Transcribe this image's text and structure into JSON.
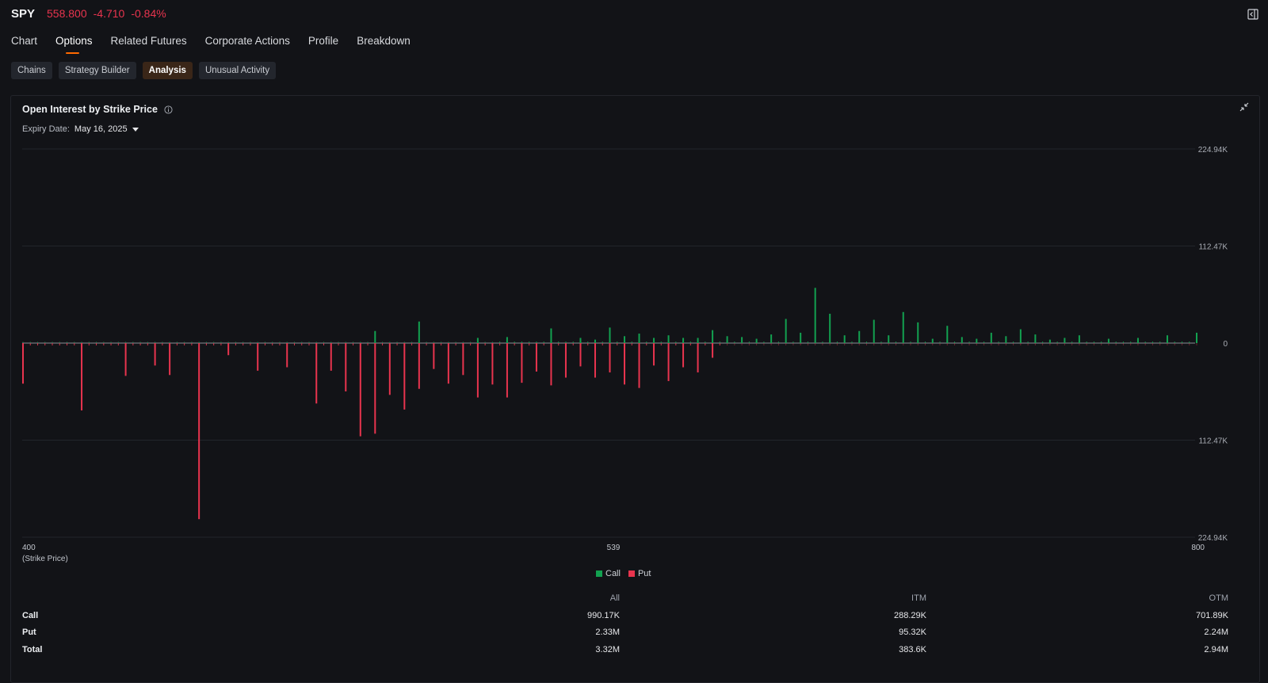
{
  "header": {
    "symbol": "SPY",
    "price": "558.800",
    "change": "-4.710",
    "change_pct": "-0.84%"
  },
  "tabs": [
    "Chart",
    "Options",
    "Related Futures",
    "Corporate Actions",
    "Profile",
    "Breakdown"
  ],
  "active_tab": "Options",
  "subtabs": [
    "Chains",
    "Strategy Builder",
    "Analysis",
    "Unusual Activity"
  ],
  "active_subtab": "Analysis",
  "panel": {
    "title": "Open Interest by Strike Price",
    "expiry_label": "Expiry Date:",
    "expiry_value": "May 16, 2025"
  },
  "chart_data": {
    "type": "bar",
    "title": "Open Interest by Strike Price",
    "xlabel": "(Strike Price)",
    "x_ticks": [
      "400",
      "539",
      "800"
    ],
    "y_ticks_right": [
      "224.94K",
      "112.47K",
      "0",
      "112.47K",
      "224.94K"
    ],
    "ylim": [
      -224940,
      224940
    ],
    "strike_range": [
      400,
      800
    ],
    "legend": [
      "Call",
      "Put"
    ],
    "colors": {
      "call": "#12a150",
      "put": "#e8344e"
    },
    "calls": {
      "strikes": [
        520,
        535,
        555,
        565,
        580,
        590,
        595,
        600,
        605,
        610,
        615,
        620,
        625,
        630,
        635,
        640,
        645,
        650,
        655,
        660,
        665,
        670,
        675,
        680,
        685,
        690,
        695,
        700,
        705,
        710,
        715,
        720,
        725,
        730,
        735,
        740,
        745,
        750,
        755,
        760,
        770,
        780,
        790,
        800
      ],
      "values": [
        14000,
        25000,
        6000,
        7000,
        17000,
        6000,
        4000,
        18000,
        8000,
        11000,
        6000,
        9000,
        6000,
        6000,
        15000,
        8000,
        7000,
        5000,
        10000,
        28000,
        12000,
        64000,
        34000,
        9000,
        14000,
        27000,
        9000,
        36000,
        24000,
        5000,
        20000,
        7000,
        5000,
        12000,
        8000,
        16000,
        10000,
        4000,
        6000,
        9000,
        5000,
        6000,
        9000,
        12000
      ]
    },
    "puts": {
      "strikes": [
        400,
        420,
        435,
        445,
        450,
        460,
        470,
        480,
        490,
        500,
        505,
        510,
        515,
        520,
        525,
        530,
        535,
        540,
        545,
        550,
        555,
        560,
        565,
        570,
        575,
        580,
        585,
        590,
        595,
        600,
        605,
        610,
        615,
        620,
        625,
        630,
        635
      ],
      "values": [
        47000,
        78000,
        38000,
        26000,
        37000,
        204000,
        14000,
        32000,
        28000,
        70000,
        32000,
        56000,
        108000,
        105000,
        60000,
        77000,
        53000,
        30000,
        47000,
        37000,
        63000,
        48000,
        63000,
        46000,
        33000,
        49000,
        40000,
        27000,
        40000,
        34000,
        48000,
        52000,
        26000,
        44000,
        28000,
        34000,
        17000
      ]
    }
  },
  "summary": {
    "headers": [
      "All",
      "ITM",
      "OTM"
    ],
    "rows": [
      {
        "label": "Call",
        "all": "990.17K",
        "itm": "288.29K",
        "otm": "701.89K"
      },
      {
        "label": "Put",
        "all": "2.33M",
        "itm": "95.32K",
        "otm": "2.24M"
      },
      {
        "label": "Total",
        "all": "3.32M",
        "itm": "383.6K",
        "otm": "2.94M"
      }
    ]
  }
}
